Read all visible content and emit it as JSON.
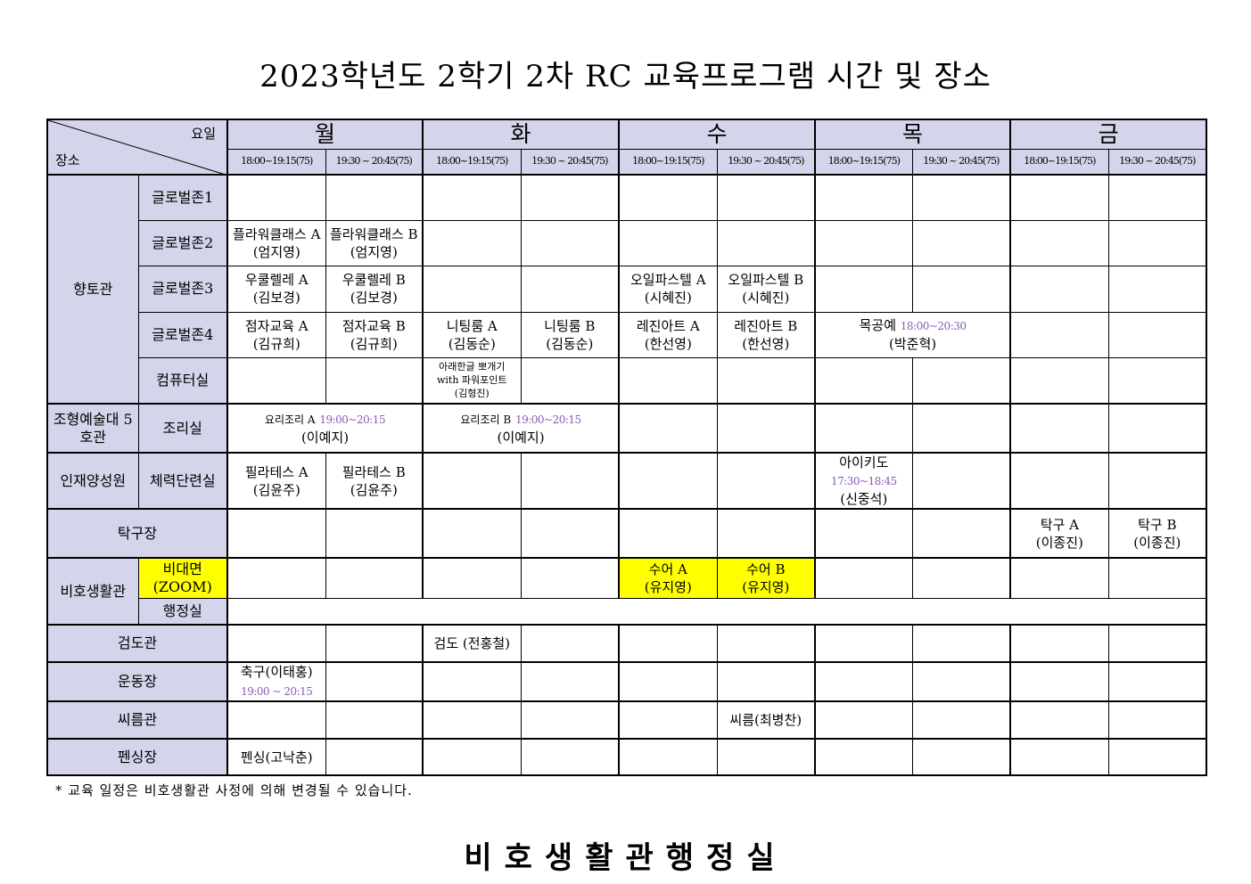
{
  "title": "2023학년도 2학기 2차 RC 교육프로그램 시간 및 장소",
  "header": {
    "corner_top": "요일",
    "corner_bottom": "장소",
    "days": [
      "월",
      "화",
      "수",
      "목",
      "금"
    ],
    "slots": [
      "18:00~19:15(75)",
      "19:30 ~ 20:45(75)"
    ]
  },
  "rows": [
    {
      "group": "향토관",
      "group_rowspan": 5,
      "room": "글로벌존1",
      "cells": [
        null,
        null,
        null,
        null,
        null,
        null,
        null,
        null,
        null,
        null
      ]
    },
    {
      "room": "글로벌존2",
      "cells": [
        {
          "text": "플라워클래스 A",
          "sub": "(엄지영)"
        },
        {
          "text": "플라워클래스 B",
          "sub": "(엄지영)"
        },
        null,
        null,
        null,
        null,
        null,
        null,
        null,
        null
      ]
    },
    {
      "room": "글로벌존3",
      "cells": [
        {
          "text": "우쿨렐레 A",
          "sub": "(김보경)"
        },
        {
          "text": "우쿨렐레 B",
          "sub": "(김보경)"
        },
        null,
        null,
        {
          "text": "오일파스텔 A",
          "sub": "(시혜진)"
        },
        {
          "text": "오일파스텔 B",
          "sub": "(시혜진)"
        },
        null,
        null,
        null,
        null
      ]
    },
    {
      "room": "글로벌존4",
      "cells": [
        {
          "text": "점자교육 A",
          "sub": "(김규희)"
        },
        {
          "text": "점자교육 B",
          "sub": "(김규희)"
        },
        {
          "text": "니팅룸 A",
          "sub": "(김동순)"
        },
        {
          "text": "니팅룸 B",
          "sub": "(김동순)"
        },
        {
          "text": "레진아트 A",
          "sub": "(한선영)"
        },
        {
          "text": "레진아트 B",
          "sub": "(한선영)"
        },
        {
          "text": "목공예",
          "time": "18:00~20:30",
          "sub": "(박준혁)",
          "span": 2
        },
        null,
        null
      ]
    },
    {
      "room": "컴퓨터실",
      "cells": [
        null,
        null,
        {
          "small": [
            "아래한글 뽀개기",
            "with 파워포인트",
            "(김형진)"
          ]
        },
        null,
        null,
        null,
        null,
        null,
        null,
        null
      ]
    },
    {
      "group": "조형예술대 5호관",
      "group_rowspan": 1,
      "room": "조리실",
      "cells": [
        {
          "text": "요리조리 A",
          "time": "19:00~20:15",
          "sub": "(이예지)",
          "span": 2,
          "smalltext": true
        },
        {
          "text": "요리조리 B",
          "time": "19:00~20:15",
          "sub": "(이예지)",
          "span": 2,
          "smalltext": true
        },
        null,
        null,
        null,
        null,
        null,
        null
      ]
    },
    {
      "group": "인재양성원",
      "group_rowspan": 1,
      "room": "체력단련실",
      "cells": [
        {
          "text": "필라테스 A",
          "sub": "(김윤주)"
        },
        {
          "text": "필라테스 B",
          "sub": "(김윤주)"
        },
        null,
        null,
        null,
        null,
        {
          "text": "아이키도",
          "time": "17:30~18:45",
          "sub": "(신중석)"
        },
        null,
        null,
        null
      ]
    },
    {
      "place": "탁구장",
      "cells": [
        null,
        null,
        null,
        null,
        null,
        null,
        null,
        null,
        {
          "text": "탁구 A",
          "sub": "(이종진)"
        },
        {
          "text": "탁구 B",
          "sub": "(이종진)"
        }
      ]
    },
    {
      "group": "비호생활관",
      "group_rowspan": 2,
      "room": "비대면 (ZOOM)",
      "room_highlight": "#ffff00",
      "cells": [
        null,
        null,
        null,
        null,
        {
          "text": "수어 A",
          "sub": "(유지영)",
          "bg": "#ffff00"
        },
        {
          "text": "수어 B",
          "sub": "(유지영)",
          "bg": "#ffff00"
        },
        null,
        null,
        null,
        null
      ]
    },
    {
      "room": "행정실",
      "cells": [
        {
          "span": 10
        }
      ]
    },
    {
      "place": "검도관",
      "cells": [
        null,
        null,
        {
          "text": "검도 (전홍철)"
        },
        null,
        null,
        null,
        null,
        null,
        null,
        null
      ]
    },
    {
      "place": "운동장",
      "cells": [
        {
          "text": "축구(이태홍)",
          "time2": "19:00 ~ 20:15"
        },
        null,
        null,
        null,
        null,
        null,
        null,
        null,
        null,
        null
      ]
    },
    {
      "place": "씨름관",
      "cells": [
        null,
        null,
        null,
        null,
        null,
        {
          "text": "씨름(최병찬)"
        },
        null,
        null,
        null,
        null
      ]
    },
    {
      "place": "펜싱장",
      "cells": [
        {
          "text": "펜싱(고낙춘)"
        },
        null,
        null,
        null,
        null,
        null,
        null,
        null,
        null,
        null
      ]
    }
  ],
  "note": "* 교육 일정은 비호생활관 사정에 의해 변경될 수 있습니다.",
  "footer": "비호생활관행정실",
  "colors": {
    "header_bg": "#d4d4ea",
    "highlight": "#ffff00",
    "time_text": "#8a5ab0"
  }
}
